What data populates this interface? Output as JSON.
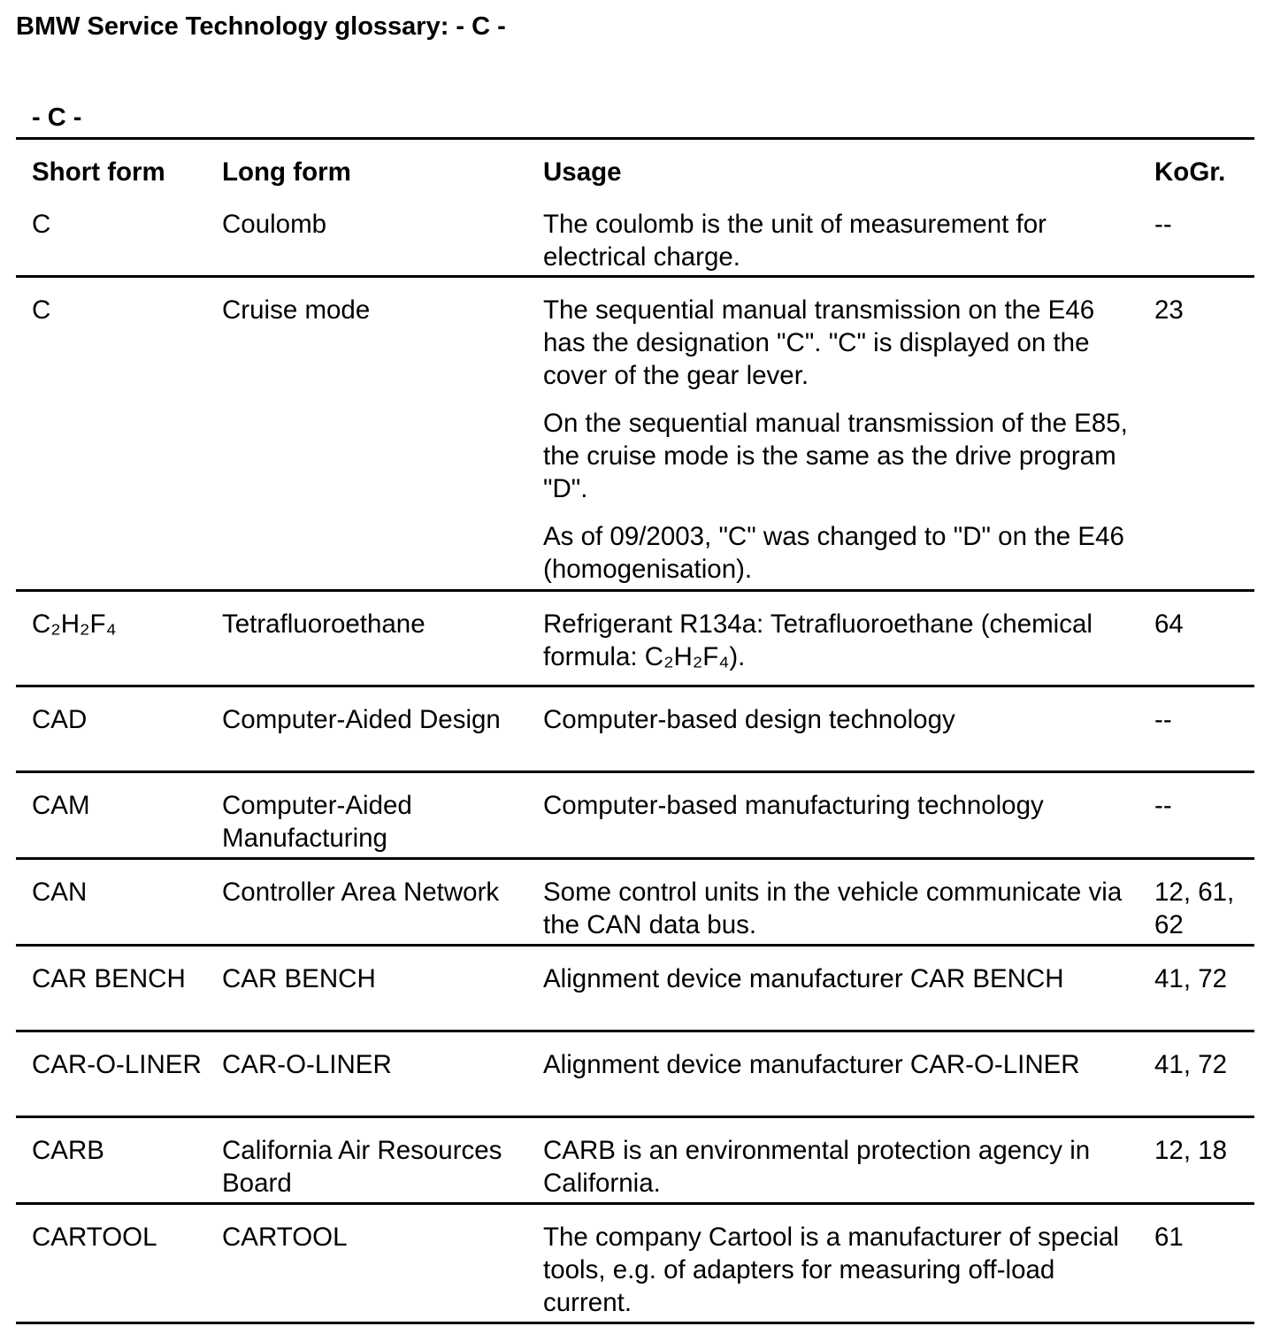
{
  "document": {
    "title": "BMW Service Technology glossary: - C -",
    "section_heading": "- C -"
  },
  "table": {
    "headers": {
      "short": "Short form",
      "long": "Long form",
      "usage": "Usage",
      "kogr": "KoGr."
    },
    "rows": [
      {
        "short": "C",
        "long": "Coulomb",
        "usage": [
          "The coulomb is the unit of measurement for electrical charge."
        ],
        "kogr": "--"
      },
      {
        "short": "C",
        "long": "Cruise mode",
        "usage": [
          "The sequential manual transmission on the E46 has the designation \"C\". \"C\" is displayed on the cover of the gear lever.",
          "On the sequential manual transmission of the E85, the cruise mode is the same as the drive program \"D\".",
          "As of 09/2003, \"C\" was changed to \"D\" on the E46 (homogenisation)."
        ],
        "kogr": "23"
      },
      {
        "short": "C₂H₂F₄",
        "long": "Tetrafluoroethane",
        "usage": [
          "Refrigerant R134a: Tetrafluoroethane (chemical formula: C₂H₂F₄)."
        ],
        "kogr": "64"
      },
      {
        "short": "CAD",
        "long": "Computer-Aided Design",
        "usage": [
          "Computer-based design technology"
        ],
        "kogr": "--"
      },
      {
        "short": "CAM",
        "long": "Computer-Aided Manufacturing",
        "usage": [
          "Computer-based manufacturing technology"
        ],
        "kogr": "--"
      },
      {
        "short": "CAN",
        "long": "Controller Area Network",
        "usage": [
          "Some control units in the vehicle communicate via the CAN data bus."
        ],
        "kogr": "12, 61, 62"
      },
      {
        "short": "CAR BENCH",
        "long": "CAR BENCH",
        "usage": [
          "Alignment device manufacturer CAR BENCH"
        ],
        "kogr": "41, 72"
      },
      {
        "short": "CAR-O-LINER",
        "long": "CAR-O-LINER",
        "usage": [
          "Alignment device manufacturer CAR-O-LINER"
        ],
        "kogr": "41, 72"
      },
      {
        "short": "CARB",
        "long": "California Air Resources Board",
        "usage": [
          "CARB is an environmental protection agency in California."
        ],
        "kogr": "12, 18"
      },
      {
        "short": "CARTOOL",
        "long": "CARTOOL",
        "usage": [
          "The company Cartool is a manufacturer of special tools, e.g. of adapters for measuring off-load current."
        ],
        "kogr": "61"
      }
    ]
  }
}
